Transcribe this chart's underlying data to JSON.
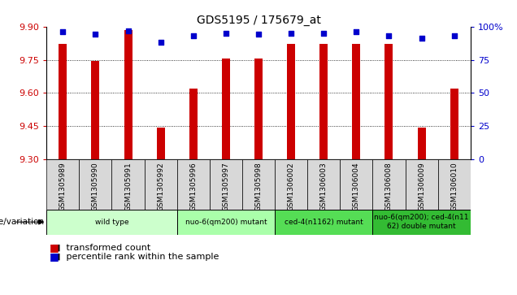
{
  "title": "GDS5195 / 175679_at",
  "samples": [
    "GSM1305989",
    "GSM1305990",
    "GSM1305991",
    "GSM1305992",
    "GSM1305996",
    "GSM1305997",
    "GSM1305998",
    "GSM1306002",
    "GSM1306003",
    "GSM1306004",
    "GSM1306008",
    "GSM1306009",
    "GSM1306010"
  ],
  "red_values": [
    9.82,
    9.745,
    9.885,
    9.445,
    9.62,
    9.755,
    9.755,
    9.82,
    9.82,
    9.82,
    9.82,
    9.445,
    9.62
  ],
  "blue_values": [
    96,
    94,
    97,
    88,
    93,
    95,
    94,
    95,
    95,
    96,
    93,
    91,
    93
  ],
  "ymin": 9.3,
  "ymax": 9.9,
  "y2min": 0,
  "y2max": 100,
  "yticks": [
    9.3,
    9.45,
    9.6,
    9.75,
    9.9
  ],
  "y2ticks": [
    0,
    25,
    50,
    75,
    100
  ],
  "group_info": [
    {
      "label": "wild type",
      "start": 0,
      "end": 3,
      "color": "#ccffcc"
    },
    {
      "label": "nuo-6(qm200) mutant",
      "start": 4,
      "end": 6,
      "color": "#aaffaa"
    },
    {
      "label": "ced-4(n1162) mutant",
      "start": 7,
      "end": 9,
      "color": "#55dd55"
    },
    {
      "label": "nuo-6(qm200); ced-4(n11\n62) double mutant",
      "start": 10,
      "end": 12,
      "color": "#33bb33"
    }
  ],
  "bar_color": "#cc0000",
  "dot_color": "#0000cc",
  "bg_color": "#ffffff",
  "label_color_red": "#cc0000",
  "label_color_blue": "#0000cc",
  "bar_width": 0.25
}
